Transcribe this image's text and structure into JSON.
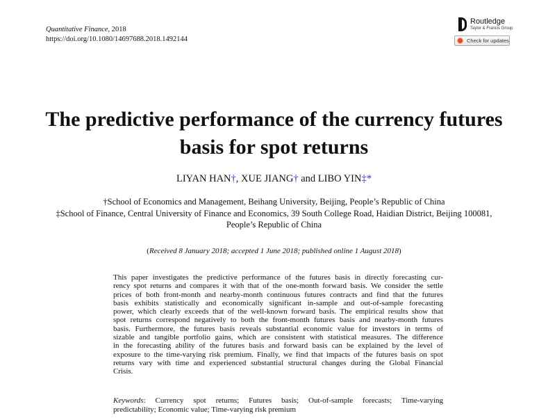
{
  "journal": {
    "name": "Quantitative Finance",
    "year": ", 2018",
    "doi": "https://doi.org/10.1080/14697688.2018.1492144"
  },
  "publisher": {
    "name": "Routledge",
    "sub": "Taylor & Francis Group",
    "check_updates": "Check for updates"
  },
  "title": [
    "The predictive performance of the currency futures",
    "basis for spot returns"
  ],
  "authors": [
    {
      "name": "LIYAN HAN",
      "mark": "†",
      "sep": ", "
    },
    {
      "name": "XUE JIANG",
      "mark": "†",
      "sep": " and "
    },
    {
      "name": "LIBO YIN",
      "mark": "‡*",
      "sep": ""
    }
  ],
  "affiliations": [
    "†School of Economics and Management, Beihang University, Beijing, People’s Republic of China",
    "‡School of Finance, Central University of Finance and Economics, 39 South College Road, Haidian District, Beijing 100081,",
    "People’s Republic of China"
  ],
  "received": {
    "open": "(",
    "text": "Received 8 January 2018; accepted 1 June 2018; published online 1 August 2018",
    "close": ")"
  },
  "abstract_lines": [
    "This paper investigates the predictive performance of the futures basis in directly forecasting cur-",
    "rency spot returns and compares it with that of the one-month forward basis. We consider the settle",
    "prices of both front-month and nearby-month continuous futures contracts and find that the futures",
    "basis exhibits statistically and economically significant in-sample and out-of-sample forecasting",
    "power, which clearly exceeds that of the well-known forward basis. The empirical results show that",
    "spot returns correspond negatively to both the front-month futures basis and nearby-month futures",
    "basis. Furthermore, the futures basis reveals substantial economic value for investors in terms of",
    "sizable and tangible portfolio gains, which are consistent with statistical measures. The difference",
    "in the forecasting ability of the futures basis and forward basis can be explained by the level of",
    "exposure to the time-varying risk premium. Finally, we find that impacts of the futures basis on spot",
    "returns vary with time and experienced substantial structural changes during the Global Financial",
    "Crisis."
  ],
  "keywords": {
    "label": "Keywords",
    "lines": [
      ": Currency spot returns; Futures basis; Out-of-sample forecasts; Time-varying",
      "predictability; Economic value; Time-varying risk premium"
    ]
  },
  "colors": {
    "footnote_mark": "#3333cc"
  }
}
